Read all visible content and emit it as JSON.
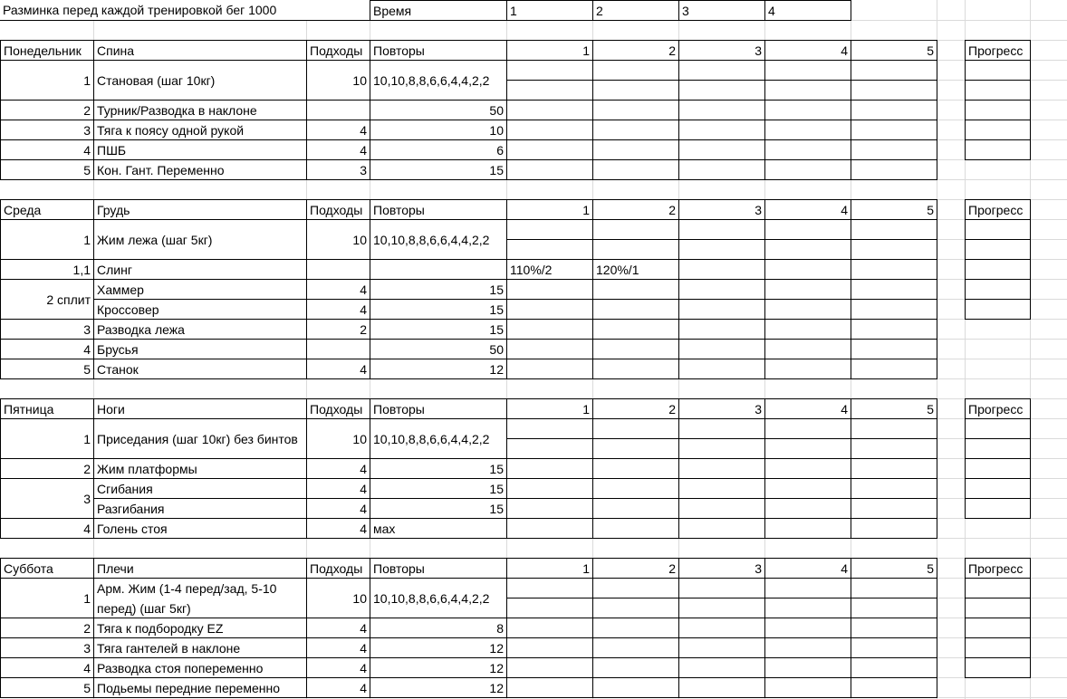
{
  "header": {
    "title": "Разминка перед каждой тренировкой бег 1000",
    "time_label": "Время",
    "time_slots": [
      "1",
      "2",
      "3",
      "4"
    ]
  },
  "sections": [
    {
      "day": "Понедельник",
      "muscle": "Спина",
      "sets_label": "Подходы",
      "reps_label": "Повторы",
      "set_numbers": [
        "1",
        "2",
        "3",
        "4",
        "5"
      ],
      "progress_label": "Прогресс",
      "exercises": [
        {
          "num": "1",
          "name": "Становая (шаг 10кг)",
          "sets": "10",
          "reps": "10,10,8,8,6,6,4,4,2,2",
          "rows": 2
        },
        {
          "num": "2",
          "name": "Турник/Разводка в наклоне",
          "sets": "",
          "reps": "50"
        },
        {
          "num": "3",
          "name": "Тяга к поясу одной рукой",
          "sets": "4",
          "reps": "10"
        },
        {
          "num": "4",
          "name": "ПШБ",
          "sets": "4",
          "reps": "6"
        },
        {
          "num": "5",
          "name": "Кон. Гант. Переменно",
          "sets": "3",
          "reps": "15"
        }
      ]
    },
    {
      "day": "Среда",
      "muscle": "Грудь",
      "sets_label": "Подходы",
      "reps_label": "Повторы",
      "set_numbers": [
        "1",
        "2",
        "3",
        "4",
        "5"
      ],
      "progress_label": "Прогресс",
      "exercises": [
        {
          "num": "1",
          "name": "Жим лежа (шаг 5кг)",
          "sets": "10",
          "reps": "10,10,8,8,6,6,4,4,2,2",
          "rows": 2
        },
        {
          "num": "1,1",
          "name": "Слинг",
          "sets": "",
          "reps": "",
          "results": [
            "110%/2",
            "120%/1"
          ]
        },
        {
          "num": "2 сплит",
          "subs": [
            {
              "name": "Хаммер",
              "sets": "4",
              "reps": "15"
            },
            {
              "name": "Кроссовер",
              "sets": "4",
              "reps": "15"
            }
          ]
        },
        {
          "num": "3",
          "name": "Разводка лежа",
          "sets": "2",
          "reps": "15"
        },
        {
          "num": "4",
          "name": "Брусья",
          "sets": "",
          "reps": "50"
        },
        {
          "num": "5",
          "name": "Станок",
          "sets": "4",
          "reps": "12"
        }
      ]
    },
    {
      "day": "Пятница",
      "muscle": "Ноги",
      "sets_label": "Подходы",
      "reps_label": "Повторы",
      "set_numbers": [
        "1",
        "2",
        "3",
        "4",
        "5"
      ],
      "progress_label": "Прогресс",
      "exercises": [
        {
          "num": "1",
          "name": "Приседания (шаг 10кг) без бинтов",
          "sets": "10",
          "reps": "10,10,8,8,6,6,4,4,2,2",
          "rows": 2
        },
        {
          "num": "2",
          "name": "Жим платформы",
          "sets": "4",
          "reps": "15"
        },
        {
          "num": "3",
          "subs": [
            {
              "name": "Сгибания",
              "sets": "4",
              "reps": "15"
            },
            {
              "name": "Разгибания",
              "sets": "4",
              "reps": "15"
            }
          ]
        },
        {
          "num": "4",
          "name": "Голень стоя",
          "sets": "4",
          "reps": "мах"
        }
      ]
    },
    {
      "day": "Суббота",
      "muscle": "Плечи",
      "sets_label": "Подходы",
      "reps_label": "Повторы",
      "set_numbers": [
        "1",
        "2",
        "3",
        "4",
        "5"
      ],
      "progress_label": "Прогресс",
      "exercises": [
        {
          "num": "1",
          "name": "Арм. Жим (1-4 перед/зад, 5-10 перед)   (шаг 5кг)",
          "sets": "10",
          "reps": "10,10,8,8,6,6,4,4,2,2",
          "rows": 2
        },
        {
          "num": "2",
          "name": "Тяга к подбородку EZ",
          "sets": "4",
          "reps": "8"
        },
        {
          "num": "3",
          "name": "Тяга гантелей в наклоне",
          "sets": "4",
          "reps": "12"
        },
        {
          "num": "4",
          "name": "Разводка стоя попеременно",
          "sets": "4",
          "reps": "12"
        },
        {
          "num": "5",
          "name": "Подьемы передние переменно",
          "sets": "4",
          "reps": "12"
        }
      ]
    }
  ]
}
